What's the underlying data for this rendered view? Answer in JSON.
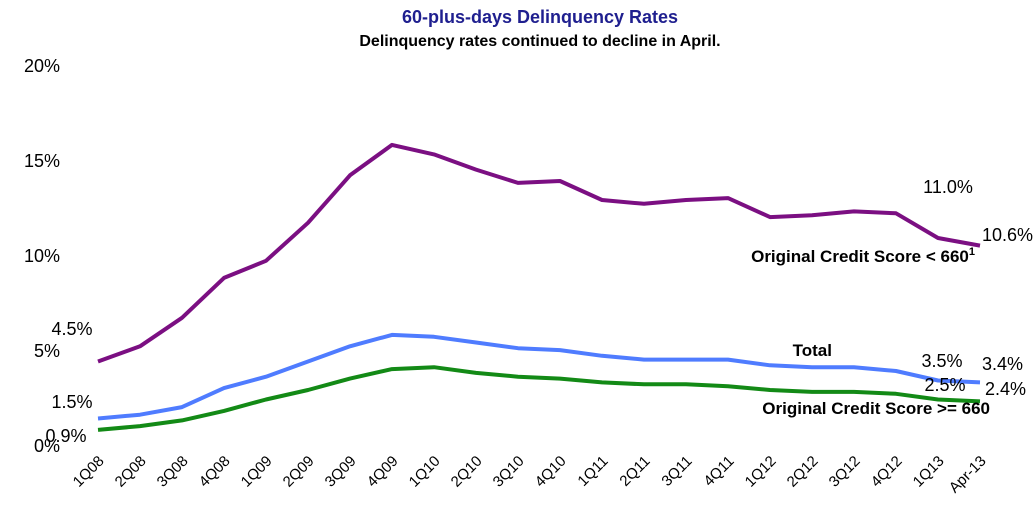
{
  "chart_data": {
    "type": "line",
    "title": "60-plus-days Delinquency Rates",
    "subtitle": "Delinquency rates continued to decline in April.",
    "categories": [
      "1Q08",
      "2Q08",
      "3Q08",
      "4Q08",
      "1Q09",
      "2Q09",
      "3Q09",
      "4Q09",
      "1Q10",
      "2Q10",
      "3Q10",
      "4Q10",
      "1Q11",
      "2Q11",
      "3Q11",
      "4Q11",
      "1Q12",
      "2Q12",
      "3Q12",
      "4Q12",
      "1Q13",
      "Apr-13"
    ],
    "ylim": [
      0,
      20
    ],
    "yticks": [
      {
        "value": 0,
        "label": "0%"
      },
      {
        "value": 5,
        "label": "5%"
      },
      {
        "value": 10,
        "label": "10%"
      },
      {
        "value": 15,
        "label": "15%"
      },
      {
        "value": 20,
        "label": "20%"
      }
    ],
    "series": [
      {
        "name": "Original Credit Score < 660",
        "footnote_mark": "1",
        "color": "#7b0f82",
        "values": [
          4.5,
          5.3,
          6.8,
          8.9,
          9.8,
          11.8,
          14.3,
          15.9,
          15.4,
          14.6,
          13.9,
          14.0,
          13.0,
          12.8,
          13.0,
          13.1,
          12.1,
          12.2,
          12.4,
          12.3,
          11.0,
          10.6
        ],
        "value_labels": [
          "4.5%",
          null,
          null,
          null,
          null,
          null,
          null,
          null,
          null,
          null,
          null,
          null,
          null,
          null,
          null,
          null,
          null,
          null,
          null,
          null,
          "11.0%",
          "10.6%"
        ]
      },
      {
        "name": "Total",
        "color": "#4f7cff",
        "values": [
          1.5,
          1.7,
          2.1,
          3.1,
          3.7,
          4.5,
          5.3,
          5.9,
          5.8,
          5.5,
          5.2,
          5.1,
          4.8,
          4.6,
          4.6,
          4.6,
          4.3,
          4.2,
          4.2,
          4.0,
          3.5,
          3.4
        ],
        "value_labels": [
          "1.5%",
          null,
          null,
          null,
          null,
          null,
          null,
          null,
          null,
          null,
          null,
          null,
          null,
          null,
          null,
          null,
          null,
          null,
          null,
          null,
          "3.5%",
          "3.4%"
        ]
      },
      {
        "name": "Original Credit Score >= 660",
        "color": "#138a16",
        "values": [
          0.9,
          1.1,
          1.4,
          1.9,
          2.5,
          3.0,
          3.6,
          4.1,
          4.2,
          3.9,
          3.7,
          3.6,
          3.4,
          3.3,
          3.3,
          3.2,
          3.0,
          2.9,
          2.9,
          2.8,
          2.5,
          2.4
        ],
        "value_labels": [
          "0.9%",
          null,
          null,
          null,
          null,
          null,
          null,
          null,
          null,
          null,
          null,
          null,
          null,
          null,
          null,
          null,
          null,
          null,
          null,
          null,
          "2.5%",
          "2.4%"
        ]
      }
    ]
  }
}
